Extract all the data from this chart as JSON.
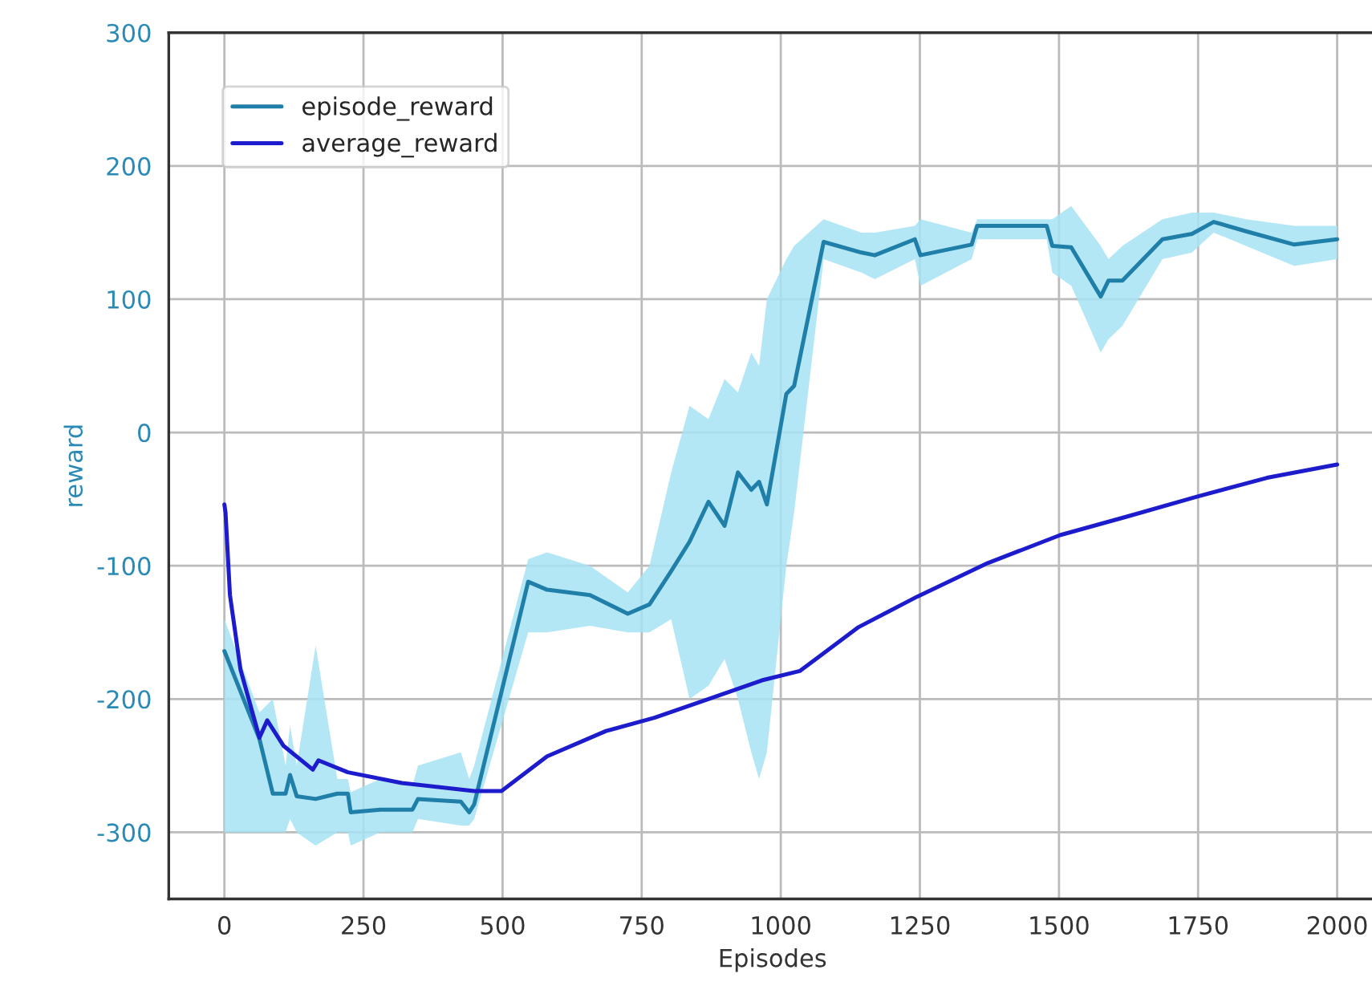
{
  "chart_data": {
    "type": "line",
    "xlabel": "Episodes",
    "ylabel": "reward",
    "xlim": [
      -100,
      2070
    ],
    "xticks": [
      0,
      250,
      500,
      750,
      1000,
      1250,
      1500,
      1750,
      2000
    ],
    "ylim": [
      -350,
      300
    ],
    "yticks": [
      -300,
      -200,
      -100,
      0,
      100,
      200,
      300
    ],
    "grid": true,
    "legend": "top left",
    "marker": "none",
    "line_style": "solid",
    "series": [
      {
        "name": "episode_reward",
        "color": "#1f7fa8",
        "x": [
          0,
          63,
          87,
          110,
          118,
          130,
          164,
          203,
          222,
          227,
          280,
          338,
          348,
          425,
          440,
          449,
          546,
          580,
          657,
          725,
          764,
          803,
          836,
          870,
          899,
          923,
          947,
          961,
          975,
          1010,
          1024,
          1077,
          1145,
          1169,
          1241,
          1251,
          1343,
          1353,
          1478,
          1488,
          1522,
          1575,
          1589,
          1614,
          1686,
          1739,
          1778,
          1836,
          1923,
          2000
        ],
        "values": [
          -164,
          -230,
          -271,
          -271,
          -257,
          -273,
          -275,
          -271,
          -271,
          -285,
          -283,
          -283,
          -275,
          -277,
          -285,
          -279,
          -112,
          -118,
          -122,
          -136,
          -129,
          -104,
          -82,
          -52,
          -70,
          -30,
          -43,
          -37,
          -54,
          29,
          35,
          143,
          135,
          133,
          145,
          133,
          141,
          155,
          155,
          140,
          139,
          102,
          114,
          114,
          145,
          149,
          158,
          151,
          141,
          145
        ],
        "lower": [
          -300,
          -300,
          -300,
          -300,
          -290,
          -300,
          -310,
          -300,
          -300,
          -310,
          -300,
          -300,
          -290,
          -295,
          -295,
          -290,
          -150,
          -150,
          -145,
          -150,
          -150,
          -140,
          -200,
          -190,
          -170,
          -200,
          -240,
          -260,
          -240,
          -100,
          -60,
          130,
          120,
          115,
          130,
          110,
          130,
          145,
          145,
          120,
          110,
          60,
          70,
          80,
          130,
          135,
          150,
          140,
          125,
          130
        ],
        "upper": [
          -140,
          -210,
          -200,
          -250,
          -220,
          -250,
          -160,
          -260,
          -260,
          -270,
          -260,
          -265,
          -250,
          -240,
          -260,
          -250,
          -95,
          -90,
          -100,
          -120,
          -100,
          -30,
          20,
          10,
          40,
          30,
          60,
          50,
          100,
          130,
          140,
          160,
          150,
          150,
          155,
          160,
          150,
          160,
          160,
          160,
          170,
          140,
          130,
          140,
          160,
          165,
          165,
          160,
          155,
          155
        ]
      },
      {
        "name": "average_reward",
        "color": "#1c1ccc",
        "x": [
          0,
          2,
          10,
          29,
          63,
          77,
          106,
          159,
          169,
          222,
          319,
          449,
          498,
          580,
          686,
          773,
          870,
          966,
          1034,
          1140,
          1246,
          1372,
          1502,
          1623,
          1749,
          1874,
          2000
        ],
        "values": [
          -54,
          -60,
          -122,
          -178,
          -229,
          -216,
          -235,
          -253,
          -246,
          -255,
          -263,
          -269,
          -269,
          -243,
          -224,
          -214,
          -200,
          -186,
          -179,
          -146,
          -123,
          -98,
          -77,
          -63,
          -48,
          -34,
          -24
        ]
      }
    ]
  }
}
